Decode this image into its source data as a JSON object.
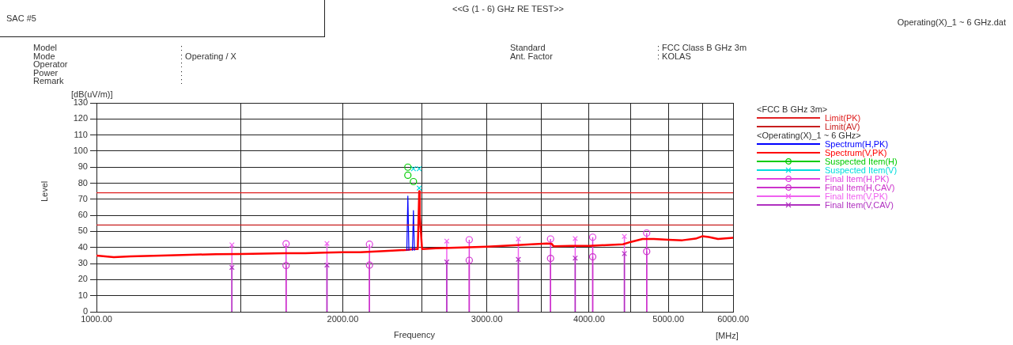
{
  "chart_data": {
    "type": "line",
    "title": "<<G (1 - 6) GHz RE TEST>>",
    "xlabel": "Frequency",
    "ylabel": "Level",
    "legend_title": "<FCC B GHz 3m>",
    "annotations": [
      "SAC #5",
      "Operating(X)_1 ~ 6 GHz.dat",
      "Model :",
      "Mode : Operating / X",
      "Operator :",
      "Power :",
      "Remark :",
      "Standard : FCC Class B GHz 3m",
      "Ant. Factor : KOLAS",
      "<Operating(X)_1 ~ 6 GHz>",
      "[dB(uV/m)]",
      "[MHz]"
    ],
    "log": "x",
    "grid": true,
    "legend": "right",
    "xlim": [
      1000,
      6000
    ],
    "xticks": [
      {
        "value": 1000,
        "label": "1000.00"
      },
      {
        "value": 1500,
        "label": null
      },
      {
        "value": 2000,
        "label": "2000.00"
      },
      {
        "value": 2500,
        "label": null
      },
      {
        "value": 3000,
        "label": "3000.00"
      },
      {
        "value": 3500,
        "label": null
      },
      {
        "value": 4000,
        "label": "4000.00"
      },
      {
        "value": 4500,
        "label": null
      },
      {
        "value": 5000,
        "label": "5000.00"
      },
      {
        "value": 5500,
        "label": null
      },
      {
        "value": 6000,
        "label": "6000.00"
      }
    ],
    "ylim": [
      0,
      130
    ],
    "yticks": [
      0,
      10,
      20,
      30,
      40,
      50,
      60,
      70,
      80,
      90,
      100,
      110,
      120,
      130
    ],
    "series": [
      {
        "name": "Limit(PK)",
        "type": "line",
        "color": "#e02020",
        "x": [
          1000,
          6000
        ],
        "values": [
          74,
          74
        ]
      },
      {
        "name": "Limit(AV)",
        "type": "line",
        "color": "#c81e1e",
        "x": [
          1000,
          6000
        ],
        "values": [
          54,
          54
        ]
      },
      {
        "name": "Spectrum(H,PK)",
        "type": "line",
        "color": "#0000ff",
        "x": [
          2395,
          2402,
          2409,
          2420,
          2433,
          2440,
          2447
        ],
        "values": [
          38,
          72,
          38,
          null,
          38,
          63,
          38
        ]
      },
      {
        "name": "Spectrum(V,PK)",
        "type": "line",
        "color": "#ff0000",
        "x": [
          1000,
          1050,
          1100,
          1200,
          1300,
          1400,
          1500,
          1600,
          1700,
          1800,
          1900,
          2000,
          2100,
          2200,
          2300,
          2400,
          2440,
          2470,
          2476,
          2480,
          2484,
          2500,
          2600,
          2700,
          2800,
          2900,
          3000,
          3200,
          3400,
          3550,
          3600,
          3620,
          3800,
          4000,
          4200,
          4400,
          4500,
          4650,
          4800,
          5000,
          5200,
          5400,
          5500,
          5600,
          5750,
          6000
        ],
        "values": [
          35,
          34,
          34.5,
          35,
          35.5,
          35.8,
          36,
          36.2,
          36.5,
          36.5,
          36.8,
          37,
          37,
          37.5,
          38,
          38.5,
          39,
          39,
          60,
          75,
          60,
          39,
          39.5,
          39.8,
          40,
          40.2,
          40.5,
          41.2,
          42,
          42.5,
          42.3,
          40.8,
          41,
          41,
          41.5,
          42,
          43.5,
          45.3,
          45.3,
          44.8,
          44.5,
          45.5,
          47,
          46.5,
          45.3,
          46
        ]
      },
      {
        "name": "Suspected Item(H)",
        "type": "scatter",
        "color": "#00cc00",
        "marker": "circle",
        "x": [
          2402,
          2402,
          2440
        ],
        "values": [
          90,
          85,
          81
        ]
      },
      {
        "name": "Suspected Item(V)",
        "type": "scatter",
        "color": "#00dddd",
        "marker": "cross",
        "x": [
          2440,
          2480,
          2480
        ],
        "values": [
          89,
          89,
          77
        ]
      },
      {
        "name": "Final Item(H,PK)",
        "type": "lollipop",
        "color": "#e040e0",
        "marker": "circle",
        "x": [
          1705,
          2156,
          2855,
          3589,
          4041,
          4704
        ],
        "values": [
          42.3,
          42,
          44.8,
          45.3,
          46.4,
          49
        ]
      },
      {
        "name": "Final Item(H,CAV)",
        "type": "lollipop",
        "color": "#cc33cc",
        "marker": "circle",
        "x": [
          1705,
          2156,
          2855,
          3589,
          4041,
          4704
        ],
        "values": [
          28.8,
          29,
          32,
          33.2,
          34.2,
          37.5
        ]
      },
      {
        "name": "Final Item(V,PK)",
        "type": "lollipop",
        "color": "#f060f0",
        "marker": "cross",
        "x": [
          1464,
          1913,
          2680,
          3278,
          3847,
          4418
        ],
        "values": [
          41.6,
          42.5,
          44,
          45.3,
          45.6,
          46.9
        ]
      },
      {
        "name": "Final Item(V,CAV)",
        "type": "lollipop",
        "color": "#b030c0",
        "marker": "cross",
        "x": [
          1464,
          1913,
          2680,
          3278,
          3847,
          4418
        ],
        "values": [
          27.6,
          29.1,
          31,
          32.6,
          33.4,
          36.2
        ]
      }
    ]
  }
}
